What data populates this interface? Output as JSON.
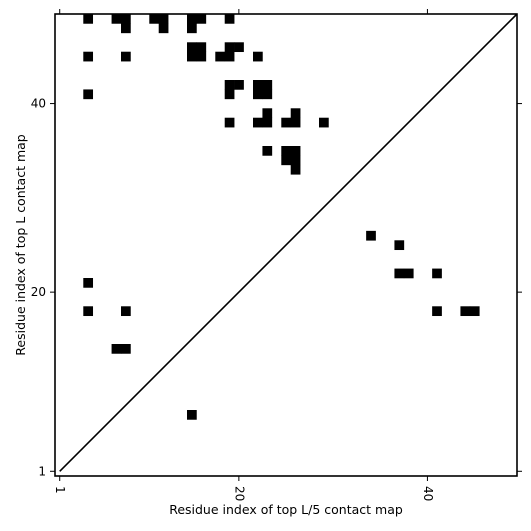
{
  "chart_data": {
    "type": "heatmap",
    "title": "",
    "xlabel": "Residue index of top L/5 contact map",
    "ylabel": "Residue index of top L contact map",
    "xlim": [
      0.5,
      49.5
    ],
    "ylim": [
      0.5,
      49.5
    ],
    "x_ticks": [
      {
        "value": 1,
        "label": "1"
      },
      {
        "value": 20,
        "label": "20"
      },
      {
        "value": 40,
        "label": "40"
      }
    ],
    "y_ticks": [
      {
        "value": 1,
        "label": "1"
      },
      {
        "value": 20,
        "label": "20"
      },
      {
        "value": 40,
        "label": "40"
      }
    ],
    "diagonal": true,
    "cell_color": "#000000",
    "background_color": "#ffffff",
    "upper_triangle_cells": [
      [
        4,
        49
      ],
      [
        7,
        49
      ],
      [
        8,
        49
      ],
      [
        11,
        49
      ],
      [
        12,
        49
      ],
      [
        15,
        49
      ],
      [
        16,
        49
      ],
      [
        19,
        49
      ],
      [
        8,
        48
      ],
      [
        12,
        48
      ],
      [
        15,
        48
      ],
      [
        15,
        46
      ],
      [
        16,
        46
      ],
      [
        19,
        46
      ],
      [
        20,
        46
      ],
      [
        4,
        45
      ],
      [
        8,
        45
      ],
      [
        15,
        45
      ],
      [
        16,
        45
      ],
      [
        18,
        45
      ],
      [
        19,
        45
      ],
      [
        22,
        45
      ],
      [
        19,
        42
      ],
      [
        20,
        42
      ],
      [
        22,
        42
      ],
      [
        23,
        42
      ],
      [
        4,
        41
      ],
      [
        19,
        41
      ],
      [
        22,
        41
      ],
      [
        23,
        41
      ],
      [
        23,
        39
      ],
      [
        26,
        39
      ],
      [
        19,
        38
      ],
      [
        22,
        38
      ],
      [
        23,
        38
      ],
      [
        25,
        38
      ],
      [
        26,
        38
      ],
      [
        29,
        38
      ],
      [
        23,
        35
      ],
      [
        25,
        35
      ],
      [
        26,
        35
      ],
      [
        25,
        34
      ],
      [
        26,
        34
      ],
      [
        26,
        33
      ]
    ],
    "lower_triangle_cells": [
      [
        34,
        26
      ],
      [
        37,
        25
      ],
      [
        37,
        22
      ],
      [
        38,
        22
      ],
      [
        41,
        22
      ],
      [
        4,
        21
      ],
      [
        4,
        18
      ],
      [
        8,
        18
      ],
      [
        41,
        18
      ],
      [
        44,
        18
      ],
      [
        45,
        18
      ],
      [
        7,
        14
      ],
      [
        8,
        14
      ],
      [
        15,
        7
      ]
    ]
  }
}
